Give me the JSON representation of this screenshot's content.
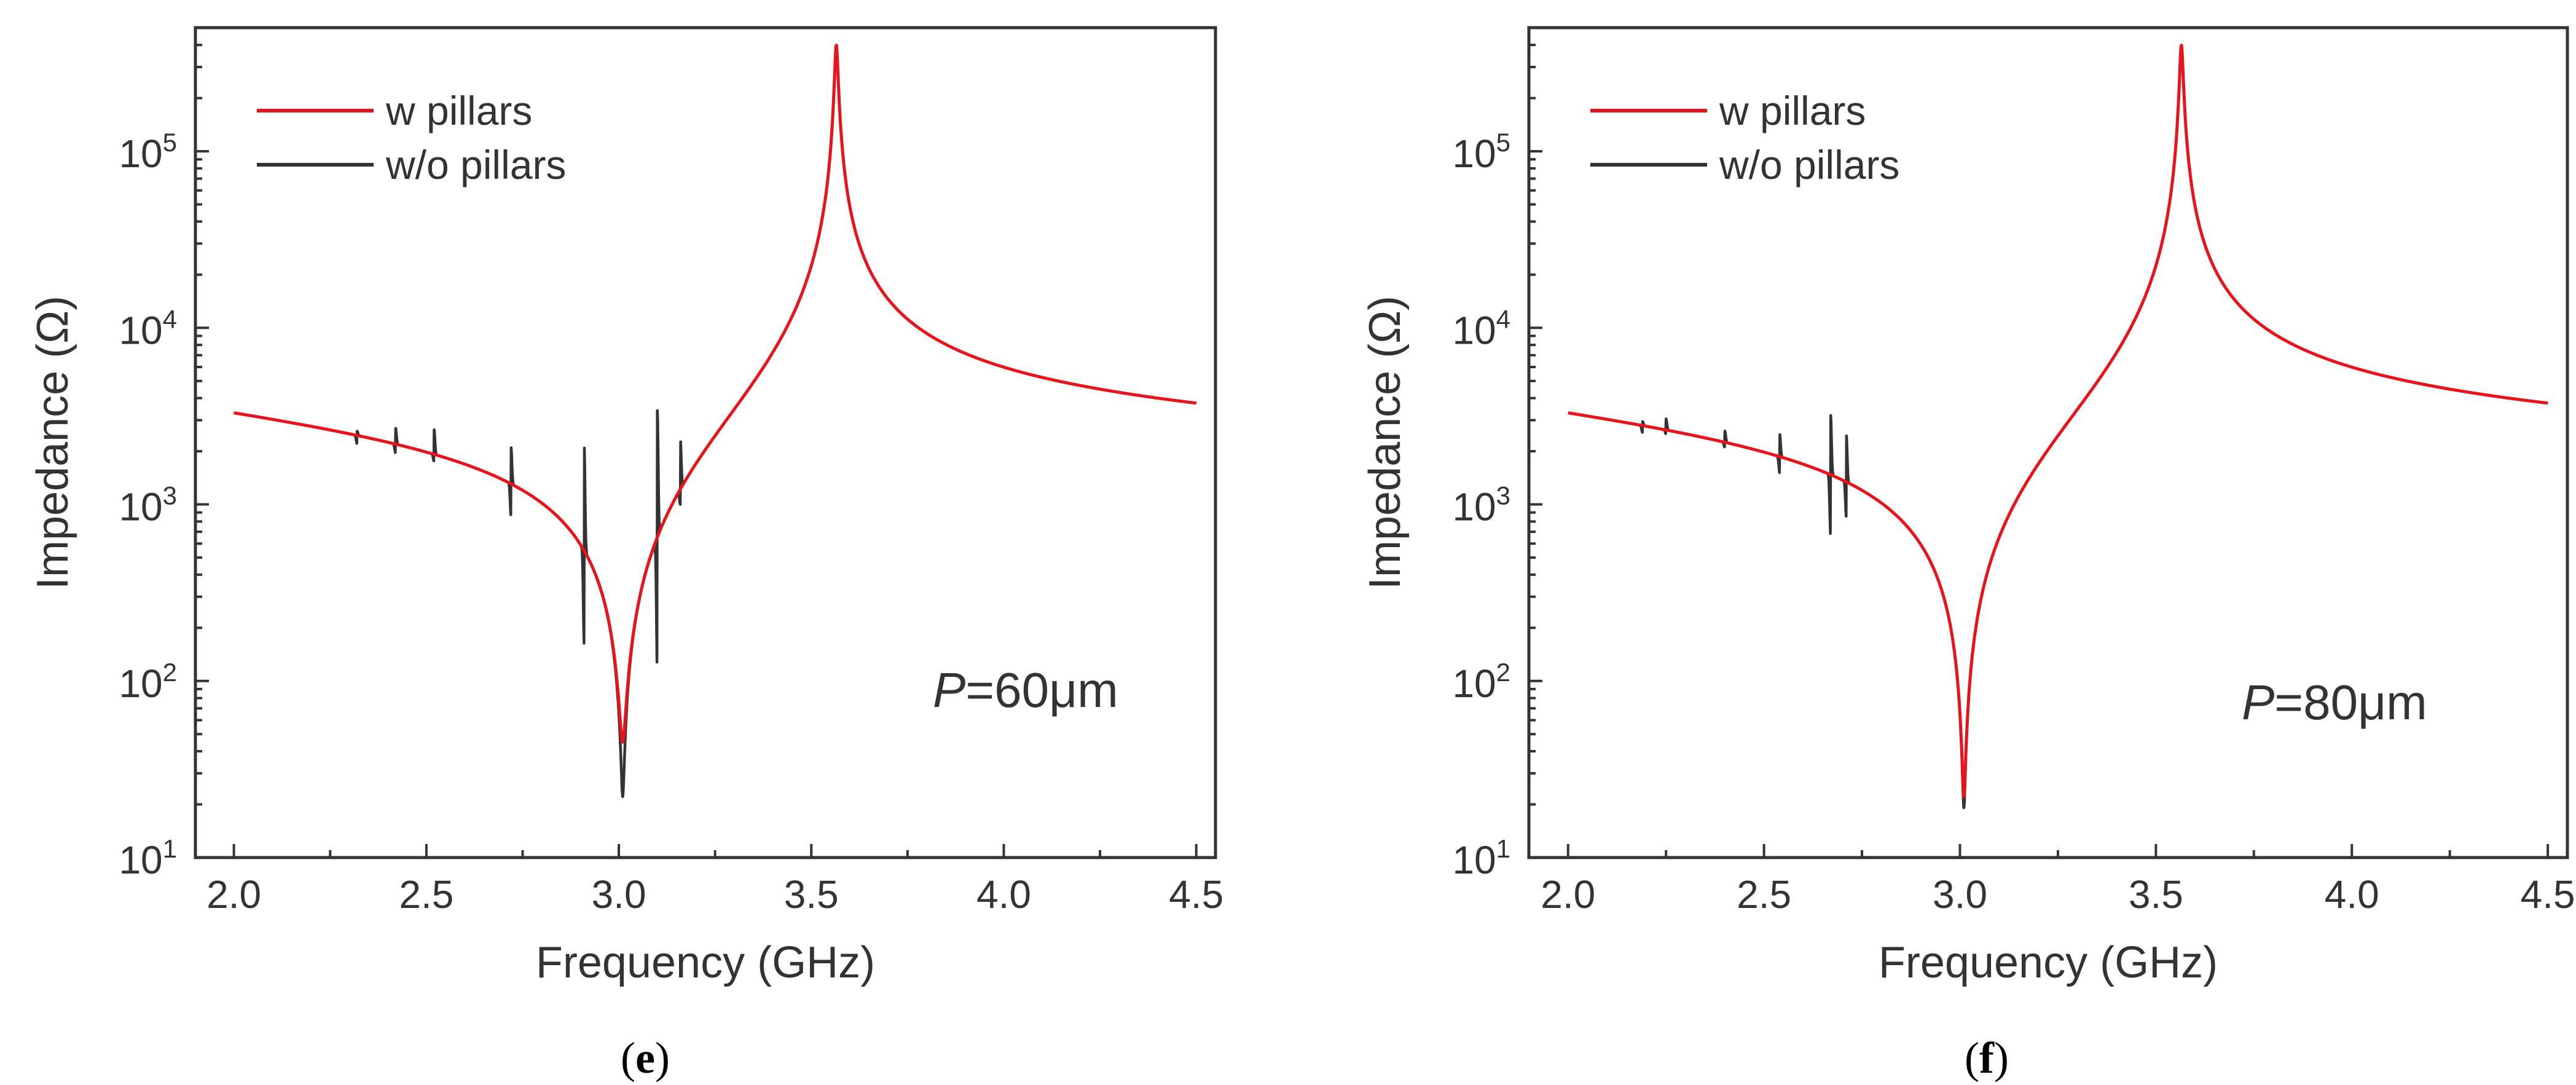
{
  "chart_data": [
    {
      "type": "line",
      "caption": "(e)",
      "caption_letter": "e",
      "annotation": {
        "italic": "P",
        "text": "=60μm"
      },
      "xlabel": "Frequency (GHz)",
      "ylabel": "Impedance (Ω)",
      "xlim": [
        1.9,
        4.55
      ],
      "ylim_log10": [
        1,
        5.7
      ],
      "yscale": "log",
      "xticks": [
        "2.0",
        "2.5",
        "3.0",
        "3.5",
        "4.0",
        "4.5"
      ],
      "yticks": [
        {
          "base": "10",
          "exp": "1"
        },
        {
          "base": "10",
          "exp": "2"
        },
        {
          "base": "10",
          "exp": "3"
        },
        {
          "base": "10",
          "exp": "4"
        },
        {
          "base": "10",
          "exp": "5"
        }
      ],
      "legend_position": "top-left",
      "series": [
        {
          "name": "w pillars",
          "color": "#e8141b",
          "fr": 3.01,
          "fa": 3.565,
          "z_at_2ghz": 3300,
          "z_at_fr": 45,
          "z_at_fa": 400000,
          "spurs": []
        },
        {
          "name": "w/o pillars",
          "color": "#333333",
          "fr": 3.01,
          "fa": 3.565,
          "z_at_2ghz": 3300,
          "z_at_fr": 22,
          "z_at_fa": 400000,
          "spurs": [
            {
              "f": 2.32,
              "up": 2600,
              "down": 2200
            },
            {
              "f": 2.42,
              "up": 2700,
              "down": 1950
            },
            {
              "f": 2.52,
              "up": 2650,
              "down": 1750
            },
            {
              "f": 2.72,
              "up": 2100,
              "down": 850
            },
            {
              "f": 2.91,
              "up": 2200,
              "down": 160
            },
            {
              "f": 3.1,
              "up": 3400,
              "down": 110
            },
            {
              "f": 3.16,
              "up": 2300,
              "down": 1000
            }
          ]
        }
      ]
    },
    {
      "type": "line",
      "caption": "(f)",
      "caption_letter": "f",
      "annotation": {
        "italic": "P",
        "text": "=80μm"
      },
      "xlabel": "Frequency (GHz)",
      "ylabel": "Impedance (Ω)",
      "xlim": [
        1.9,
        4.55
      ],
      "ylim_log10": [
        1,
        5.7
      ],
      "yscale": "log",
      "xticks": [
        "2.0",
        "2.5",
        "3.0",
        "3.5",
        "4.0",
        "4.5"
      ],
      "yticks": [
        {
          "base": "10",
          "exp": "1"
        },
        {
          "base": "10",
          "exp": "2"
        },
        {
          "base": "10",
          "exp": "3"
        },
        {
          "base": "10",
          "exp": "4"
        },
        {
          "base": "10",
          "exp": "5"
        }
      ],
      "legend_position": "top-left",
      "series": [
        {
          "name": "w pillars",
          "color": "#e8141b",
          "fr": 3.01,
          "fa": 3.565,
          "z_at_2ghz": 3300,
          "z_at_fr": 22,
          "z_at_fa": 400000,
          "spurs": []
        },
        {
          "name": "w/o pillars",
          "color": "#333333",
          "fr": 3.01,
          "fa": 3.565,
          "z_at_2ghz": 3300,
          "z_at_fr": 19,
          "z_at_fa": 400000,
          "spurs": [
            {
              "f": 2.19,
              "up": 2950,
              "down": 2550
            },
            {
              "f": 2.25,
              "up": 3050,
              "down": 2500
            },
            {
              "f": 2.4,
              "up": 2600,
              "down": 2100
            },
            {
              "f": 2.54,
              "up": 2500,
              "down": 1500
            },
            {
              "f": 2.67,
              "up": 3200,
              "down": 650
            },
            {
              "f": 2.71,
              "up": 2500,
              "down": 850
            }
          ]
        }
      ]
    }
  ]
}
